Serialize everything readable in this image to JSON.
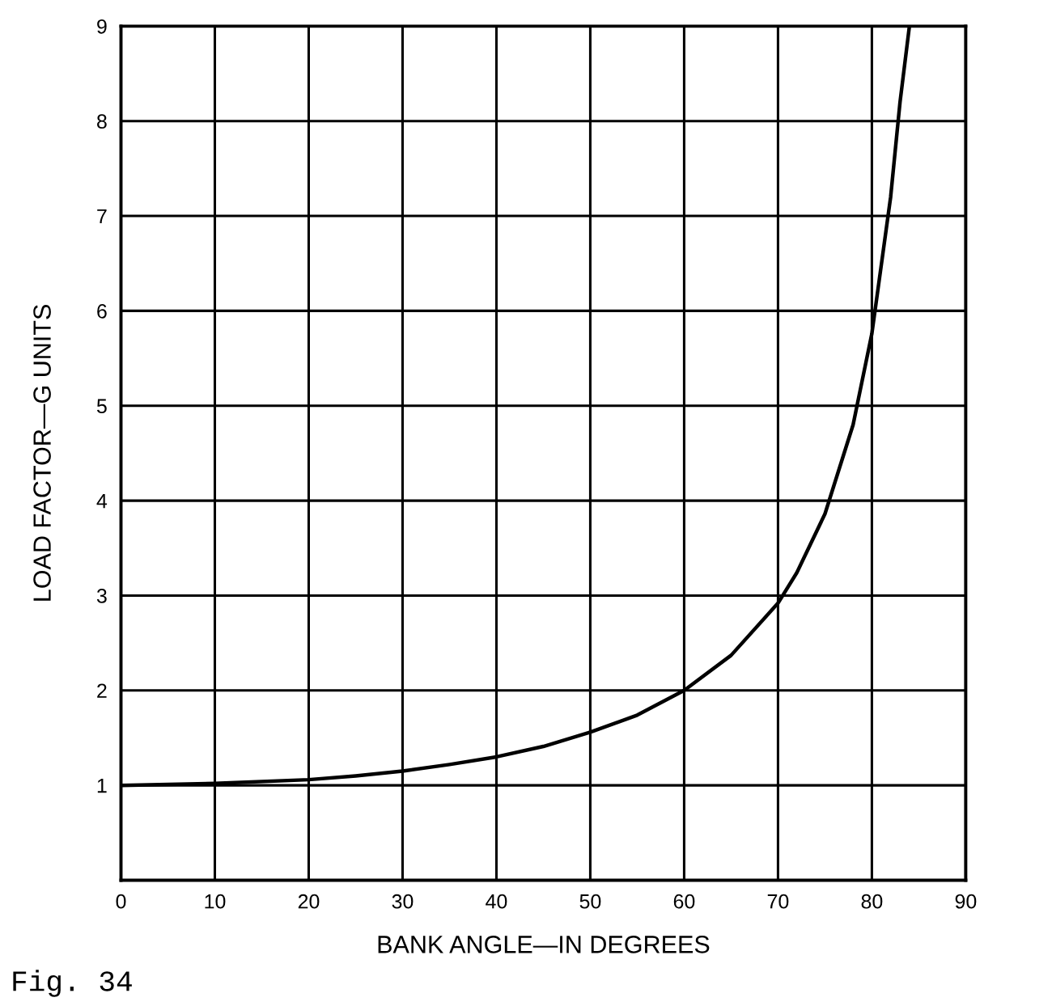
{
  "chart_data": {
    "type": "line",
    "xlabel": "BANK ANGLE—IN DEGREES",
    "ylabel": "LOAD FACTOR—G UNITS",
    "annotations": [
      "Fig. 34"
    ],
    "xlim": [
      0,
      90
    ],
    "ylim": [
      0,
      9
    ],
    "xticks": [
      0,
      10,
      20,
      30,
      40,
      50,
      60,
      70,
      80,
      90
    ],
    "yticks": [
      1,
      2,
      3,
      4,
      5,
      6,
      7,
      8,
      9
    ],
    "grid": true,
    "marker": "none",
    "line_style": "solid",
    "series": [
      {
        "color": "#000000",
        "x": [
          0,
          10,
          20,
          25,
          30,
          35,
          40,
          45,
          50,
          55,
          60,
          65,
          70,
          72,
          75,
          78,
          80,
          82,
          83,
          84
        ],
        "values": [
          1.0,
          1.02,
          1.06,
          1.1,
          1.15,
          1.22,
          1.3,
          1.41,
          1.56,
          1.74,
          2.0,
          2.37,
          2.92,
          3.24,
          3.86,
          4.8,
          5.76,
          7.2,
          8.2,
          9.0
        ]
      }
    ]
  }
}
